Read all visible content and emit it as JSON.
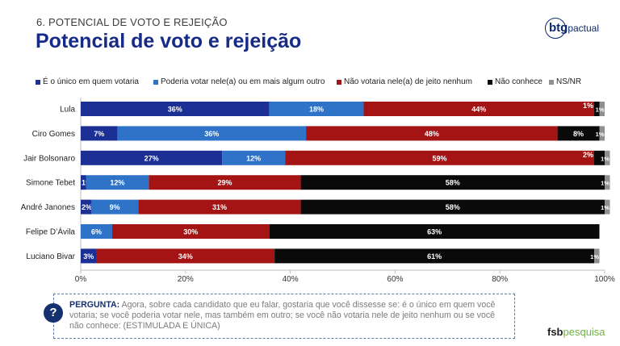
{
  "header": {
    "section": "6. POTENCIAL DE VOTO E REJEIÇÃO",
    "title": "Potencial de voto e rejeição"
  },
  "logos": {
    "brand_bold": "btg",
    "brand_light": "pactual",
    "footer_bold": "fsb",
    "footer_accent": "pesquisa"
  },
  "colors": {
    "title": "#162a86",
    "series": [
      "#1b2f95",
      "#2e73c7",
      "#a41414",
      "#0a0a0a",
      "#8f8f8f"
    ]
  },
  "chart_data": {
    "type": "bar",
    "orientation": "horizontal",
    "stacked": true,
    "categories": [
      "Lula",
      "Ciro Gomes",
      "Jair Bolsonaro",
      "Simone Tebet",
      "André Janones",
      "Felipe D’Ávila",
      "Luciano Bivar"
    ],
    "series": [
      {
        "name": "É o único em quem votaria",
        "values": [
          36,
          7,
          27,
          1,
          2,
          0,
          3
        ],
        "labels": [
          "36%",
          "7%",
          "27%",
          "1%",
          "2%",
          "",
          "3%"
        ]
      },
      {
        "name": "Poderia votar nele(a) ou em mais algum outro",
        "values": [
          18,
          36,
          12,
          12,
          9,
          6,
          0
        ],
        "labels": [
          "18%",
          "36%",
          "12%",
          "12%",
          "9%",
          "6%",
          ""
        ]
      },
      {
        "name": "Não votaria nele(a) de jeito nenhum",
        "values": [
          44,
          48,
          59,
          29,
          31,
          30,
          34
        ],
        "labels": [
          "44%",
          "48%",
          "59%",
          "29%",
          "31%",
          "30%",
          "34%"
        ]
      },
      {
        "name": "Não conhece",
        "values": [
          1,
          8,
          2,
          58,
          58,
          63,
          61
        ],
        "labels": [
          "1%",
          "8%",
          "2%",
          "58%",
          "58%",
          "63%",
          "61%"
        ]
      },
      {
        "name": "NS/NR",
        "values": [
          1,
          1,
          1,
          1,
          1,
          0,
          1
        ],
        "labels": [
          "1%",
          "1%",
          "1%",
          "1%",
          "1%",
          "",
          "1%"
        ]
      }
    ],
    "x_ticks": [
      "0%",
      "20%",
      "40%",
      "60%",
      "80%",
      "100%"
    ],
    "xlim": [
      0,
      100
    ],
    "legend": "top",
    "grid": false
  },
  "question": {
    "label": "PERGUNTA:",
    "text": " Agora, sobre cada candidato que eu falar, gostaria que você dissesse se: é o único em quem você votaria; se você poderia votar nele, mas também em outro; se você não votaria nele de jeito nenhum ou se você não conhece: (ESTIMULADA E ÚNICA)",
    "icon": "?"
  }
}
